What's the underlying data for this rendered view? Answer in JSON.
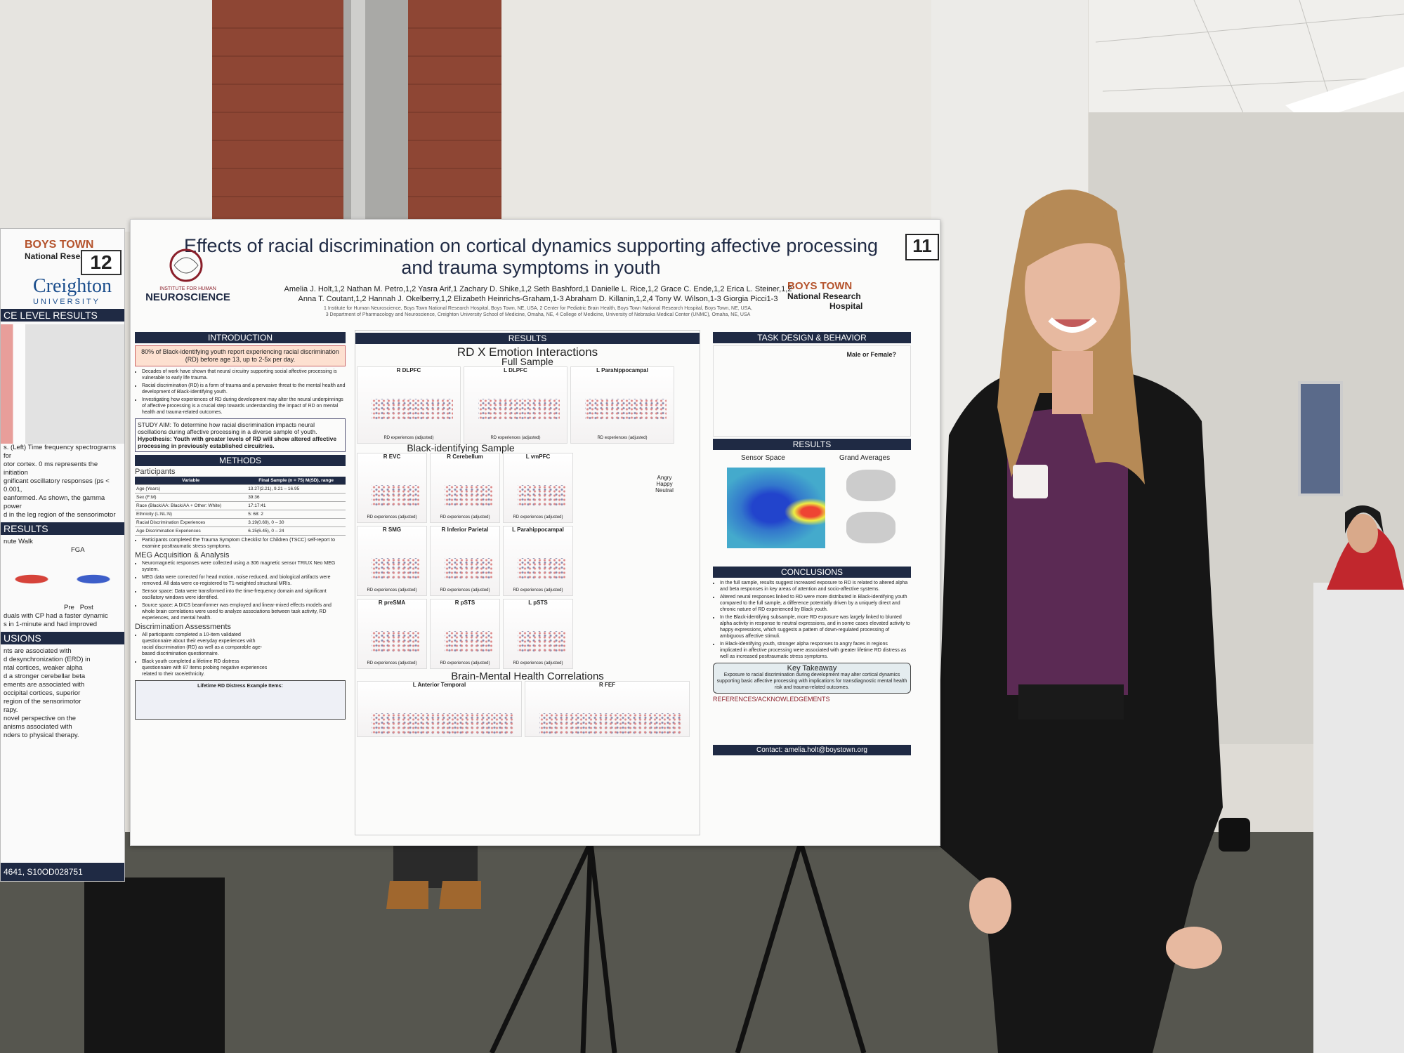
{
  "left_poster": {
    "number": "12",
    "logo_top": "BOYS TOWN",
    "logo_sub": "National Research H",
    "university": "Creighton",
    "university_sub": "UNIVERSITY",
    "headers": [
      "CE LEVEL RESULTS",
      "RESULTS",
      "USIONS"
    ],
    "chart_labels": [
      "nute Walk",
      "FGA",
      "Pre",
      "Post"
    ],
    "text_lines": [
      "s. (Left) Time frequency spectrograms for",
      "otor cortex. 0 ms represents the initiation",
      "gnificant oscillatory responses (ps < 0.001,",
      "eanformed. As shown, the gamma power",
      "d in the leg region of the sensorimotor",
      "duals with CP had a faster dynamic",
      "s in 1-minute and had improved",
      "nts are associated with",
      "d desynchronization (ERD) in",
      "ntal cortices, weaker alpha",
      "d a stronger cerebellar beta",
      "ements are associated with",
      "occipital cortices, superior",
      "region of the sensorimotor",
      "rapy.",
      "novel perspective on the",
      "anisms associated with",
      "nders to physical therapy."
    ],
    "footer": "4641, S10OD028751"
  },
  "poster": {
    "number": "11",
    "title": "Effects of racial discrimination on cortical dynamics supporting affective processing and trauma symptoms in youth",
    "authors": [
      "Amelia J. Holt,1,2 Nathan M. Petro,1,2 Yasra Arif,1 Zachary D. Shike,1,2 Seth Bashford,1 Danielle L. Rice,1,2 Grace C. Ende,1,2 Erica L. Steiner,1,2",
      "Anna T. Coutant,1,2 Hannah J. Okelberry,1,2 Elizabeth Heinrichs-Graham,1-3 Abraham D. Killanin,1,2,4 Tony W. Wilson,1-3 Giorgia Picci1-3"
    ],
    "affiliations": [
      "1 Institute for Human Neuroscience, Boys Town National Research Hospital, Boys Town, NE, USA, 2 Center for Pediatric Brain Health, Boys Town National Research Hospital, Boys Town, NE, USA,",
      "3 Department of Pharmacology and Neuroscience, Creighton University School of Medicine, Omaha, NE, 4 College of Medicine, University of Nebraska Medical Center (UNMC), Omaha, NE, USA"
    ],
    "logo_left": [
      "INSTITUTE FOR HUMAN",
      "NEUROSCIENCE"
    ],
    "logo_right": [
      "BOYS TOWN",
      "National Research",
      "Hospital"
    ],
    "introduction": {
      "header": "INTRODUCTION",
      "highlight": "80% of Black-identifying youth report experiencing racial discrimination (RD) before age 13, up to 2-5x per day.",
      "bullets": [
        "Decades of work have shown that neural circuitry supporting social affective processing is vulnerable to early life trauma.",
        "Racial discrimination (RD) is a form of trauma and a pervasive threat to the mental health and development of Black-identifying youth.",
        "Investigating how experiences of RD during development may alter the neural underpinnings of affective processing is a crucial step towards understanding the impact of RD on mental health and trauma-related outcomes."
      ],
      "aim": "STUDY AIM: To determine how racial discrimination impacts neural oscillations during affective processing in a diverse sample of youth.",
      "hypothesis": "Hypothesis: Youth with greater levels of RD will show altered affective processing in previously established circuitries."
    },
    "methods": {
      "header": "METHODS",
      "participants": "Participants",
      "table": {
        "head": [
          "Variable",
          "Final Sample (n = 75) M(SD), range"
        ],
        "rows": [
          [
            "Age (Years)",
            "13.27(2.21), 9.21 – 16.95"
          ],
          [
            "Sex (F:M)",
            "39:36"
          ],
          [
            "Race (Black/AA: Black/AA + Other: White)",
            "17:17:41"
          ],
          [
            "Ethnicity (L:NL:N)",
            "5: 68: 2"
          ],
          [
            "Racial Discrimination Experiences",
            "3.19(0.69), 0 – 30"
          ],
          [
            "Age Discrimination Experiences",
            "6.15(6.45), 0 – 24"
          ]
        ]
      },
      "table_note": "Participants completed the Trauma Symptom Checklist for Children (TSCC) self-report to examine posttraumatic stress symptoms.",
      "meg_header": "MEG Acquisition & Analysis",
      "meg_bullets": [
        "Neuromagnetic responses were collected using a 306 magnetic sensor TRIUX Neo MEG system.",
        "MEG data were corrected for head motion, noise reduced, and biological artifacts were removed. All data were co-registered to T1-weighted structural MRIs.",
        "Sensor space: Data were transformed into the time-frequency domain and significant oscillatory windows were identified.",
        "Source space: A DICS beamformer was employed and linear-mixed effects models and whole brain correlations were used to analyze associations between task activity, RD experiences, and mental health."
      ],
      "disc_header": "Discrimination Assessments",
      "disc_bullets": [
        "All participants completed a 10-item validated questionnaire about their everyday experiences with racial discrimination (RD) as well as a comparable age-based discrimination questionnaire.",
        "Black youth completed a lifetime RD distress questionnaire with 87 items probing negative experiences related to their race/ethnicity."
      ],
      "distress_header": "Lifetime RD Distress Example Items:"
    },
    "results": {
      "header": "RESULTS",
      "section1": "RD X Emotion Interactions",
      "full": "Full Sample",
      "full_panels": [
        "R DLPFC",
        "L DLPFC",
        "L Parahippocampal"
      ],
      "black": "Black-identifying Sample",
      "black_panels": [
        "R EVC",
        "R Cerebellum",
        "L vmPFC",
        "R SMG",
        "R Inferior Parietal",
        "L Parahippocampal",
        "R preSMA",
        "R pSTS",
        "L pSTS"
      ],
      "xlabel": "RD experiences (adjusted)",
      "section2": "Brain-Mental Health Correlations",
      "corr_panels": [
        "L Anterior Temporal",
        "R FEF"
      ],
      "faces": [
        "Angry",
        "Happy",
        "Neutral"
      ]
    },
    "task": {
      "header": "TASK DESIGN & BEHAVIOR",
      "question": "Male or Female?",
      "results_header": "RESULTS",
      "sensor": "Sensor Space",
      "grand": "Grand Averages"
    },
    "conclusions": {
      "header": "CONCLUSIONS",
      "bullets": [
        "In the full sample, results suggest increased exposure to RD is related to altered alpha and beta responses in key areas of attention and socio-affective systems.",
        "Altered neural responses linked to RD were more distributed in Black-identifying youth compared to the full sample, a difference potentially driven by a uniquely direct and chronic nature of RD experienced by Black youth.",
        "In the Black-identifying subsample, more RD exposure was largely linked to blunted alpha activity in response to neutral expressions, and in some cases elevated activity to happy expressions, which suggests a pattern of down-regulated processing of ambiguous affective stimuli.",
        "In Black-identifying youth, stronger alpha responses to angry faces in regions implicated in affective processing were associated with greater lifetime RD distress as well as increased posttraumatic stress symptoms."
      ],
      "takeaway_header": "Key Takeaway",
      "takeaway": "Exposure to racial discrimination during development may alter cortical dynamics supporting basic affective processing with implications for transdiagnostic mental health risk and trauma-related outcomes.",
      "refs_header": "REFERENCES/ACKNOWLEDGEMENTS",
      "contact": "Contact: amelia.holt@boystown.org"
    }
  }
}
